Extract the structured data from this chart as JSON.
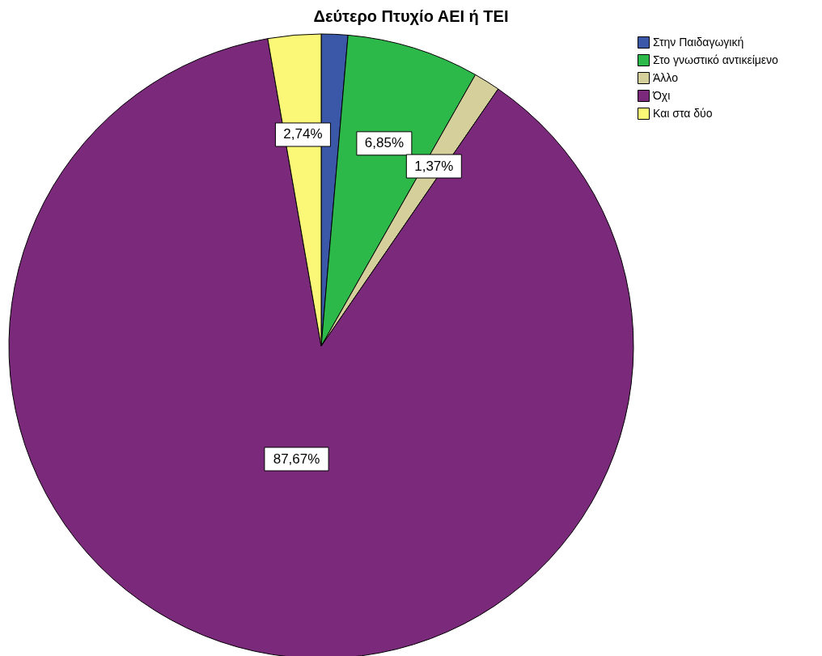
{
  "chart_data": {
    "type": "pie",
    "title": "Δεύτερο Πτυχίο ΑΕΙ ή ΤΕΙ",
    "categories": [
      "Στην Παιδαγωγική",
      "Στο γνωστικό αντικείμενο",
      "Άλλο",
      "Όχι",
      "Και στα δύο"
    ],
    "values": [
      1.37,
      6.85,
      1.37,
      87.67,
      2.74
    ],
    "colors": [
      "#3b57a8",
      "#2db84a",
      "#d4cf9b",
      "#7b297b",
      "#fbf877"
    ],
    "value_labels": [
      null,
      "6,85%",
      "1,37%",
      "87,67%",
      "2,74%"
    ],
    "legend": "top right"
  }
}
